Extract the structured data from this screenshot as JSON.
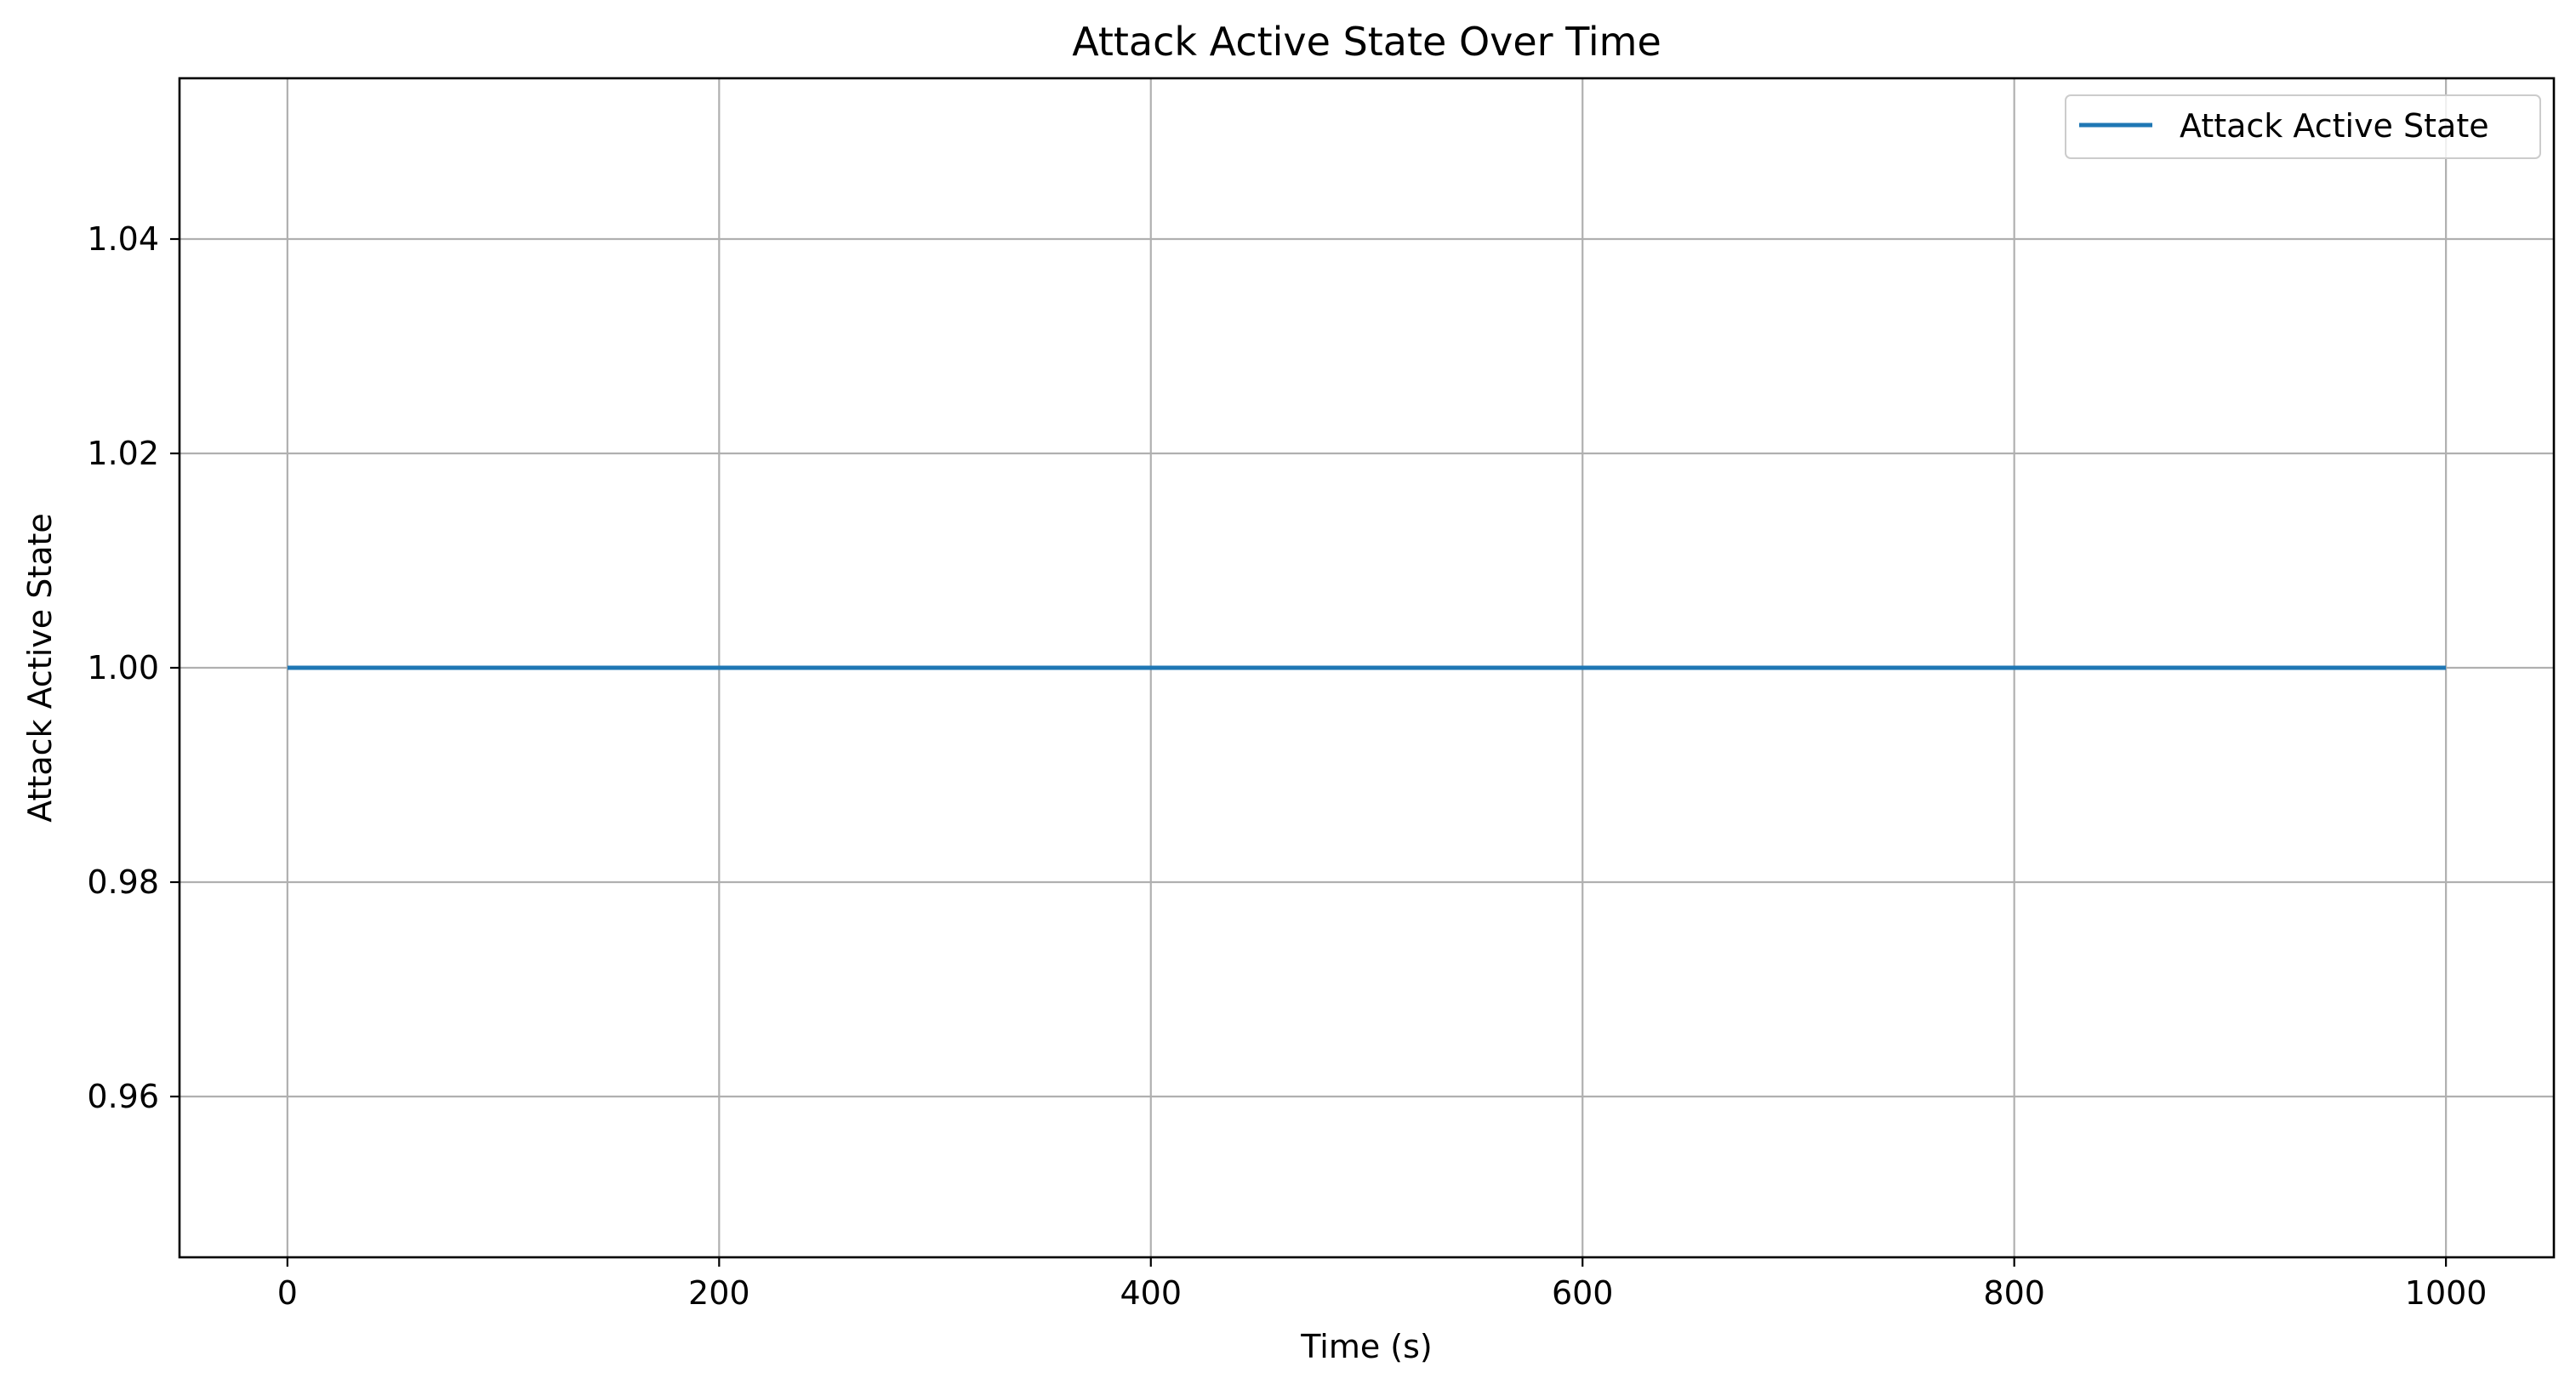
{
  "chart_data": {
    "type": "line",
    "title": "Attack Active State Over Time",
    "xlabel": "Time (s)",
    "ylabel": "Attack Active State",
    "xlim": [
      -50,
      1050
    ],
    "ylim": [
      0.945,
      1.055
    ],
    "x_ticks": [
      0,
      200,
      400,
      600,
      800,
      1000
    ],
    "x_tick_labels": [
      "0",
      "200",
      "400",
      "600",
      "800",
      "1000"
    ],
    "y_ticks": [
      0.96,
      0.98,
      1.0,
      1.02,
      1.04
    ],
    "y_tick_labels": [
      "0.96",
      "0.98",
      "1.00",
      "1.02",
      "1.04"
    ],
    "grid": true,
    "legend_position": "top-right",
    "series": [
      {
        "name": "Attack Active State",
        "color": "#1f77b4",
        "x": [
          0,
          1000
        ],
        "y": [
          1.0,
          1.0
        ]
      }
    ],
    "colors": {
      "grid": "#b0b0b0",
      "axes": "#000000"
    }
  }
}
